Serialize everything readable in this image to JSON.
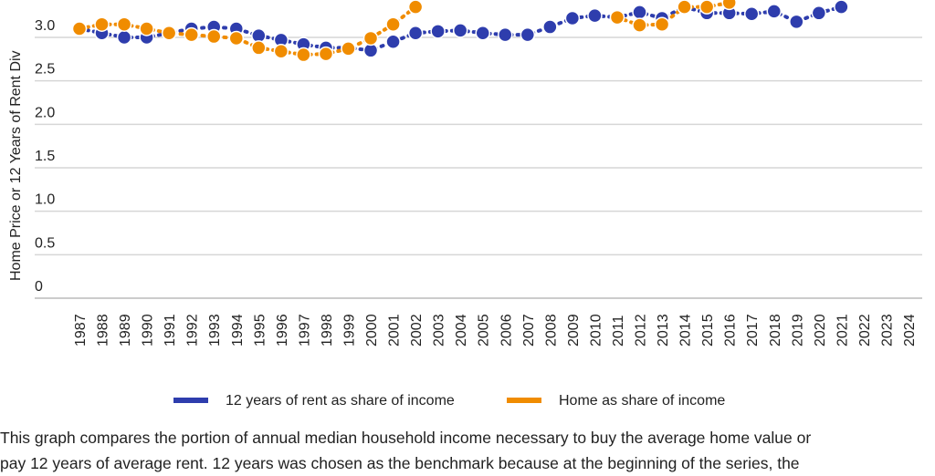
{
  "chart_data": {
    "type": "line",
    "y_label": "Home Price or 12 Years of Rent Div",
    "categories": [
      "1987",
      "1988",
      "1989",
      "1990",
      "1991",
      "1992",
      "1993",
      "1994",
      "1995",
      "1996",
      "1997",
      "1998",
      "1999",
      "2000",
      "2001",
      "2002",
      "2003",
      "2004",
      "2005",
      "2006",
      "2007",
      "2008",
      "2009",
      "2010",
      "2011",
      "2012",
      "2013",
      "2014",
      "2015",
      "2016",
      "2017",
      "2018",
      "2019",
      "2020",
      "2021",
      "2022",
      "2023",
      "2024"
    ],
    "series": [
      {
        "name": "12 years of rent as share of income",
        "color": "#2e3dad",
        "values": [
          3.1,
          3.05,
          3.0,
          3.0,
          3.05,
          3.1,
          3.12,
          3.1,
          3.02,
          2.97,
          2.92,
          2.88,
          2.88,
          2.85,
          2.95,
          3.05,
          3.07,
          3.08,
          3.05,
          3.03,
          3.03,
          3.12,
          3.22,
          3.25,
          3.23,
          3.29,
          3.22,
          3.35,
          3.28,
          3.28,
          3.27,
          3.3,
          3.18,
          3.28,
          3.35,
          null,
          null,
          null
        ]
      },
      {
        "name": "Home as share of income",
        "color": "#f08c00",
        "values": [
          3.1,
          3.15,
          3.15,
          3.1,
          3.05,
          3.03,
          3.01,
          2.99,
          2.88,
          2.84,
          2.8,
          2.81,
          2.87,
          2.99,
          3.15,
          3.35,
          null,
          null,
          null,
          null,
          null,
          null,
          null,
          null,
          3.23,
          3.14,
          3.15,
          3.35,
          3.35,
          3.4,
          null,
          null,
          null,
          null,
          null,
          null,
          null,
          null
        ]
      }
    ],
    "ylim": [
      0,
      3.43
    ],
    "yticks": [
      0,
      0.5,
      {
        "value": 1,
        "label": "1.0"
      },
      1.5,
      {
        "value": 2,
        "label": "2.0"
      },
      2.5,
      {
        "value": 3,
        "label": "3.0"
      }
    ],
    "grid": true,
    "legend": "bottom"
  },
  "caption": [
    "This graph compares the portion of annual median household income necessary to buy the average home value or",
    "pay 12 years of average rent. 12 years was chosen as the benchmark because at the beginning of the series, the"
  ]
}
